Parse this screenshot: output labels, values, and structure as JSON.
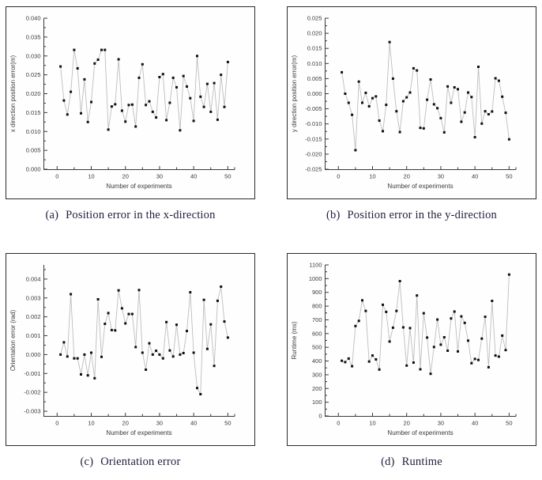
{
  "style": {
    "background": "#ffffff",
    "border_color": "#2b2b2b",
    "axis_color": "#3a3a3a",
    "tick_label_color": "#3a3a3a",
    "marker_color": "#101010",
    "line_color": "#bdbdbd",
    "caption_color": "#1e1e3e"
  },
  "chart_data": [
    {
      "id": "a",
      "type": "line",
      "caption_label": "(a)",
      "caption_text": "Position error in the x-direction",
      "xlabel": "Number of experiments",
      "ylabel": "x direction position error(m)",
      "xlim": [
        -4,
        52
      ],
      "ylim": [
        0,
        0.04
      ],
      "xticks": [
        0,
        10,
        20,
        30,
        40,
        50
      ],
      "xminorticks": [
        5,
        15,
        25,
        35,
        45,
        52
      ],
      "yticks": [
        0.0,
        0.005,
        0.01,
        0.015,
        0.02,
        0.025,
        0.03,
        0.035,
        0.04
      ],
      "ytick_decimals": 3,
      "legend": null,
      "grid": false,
      "x": [
        1,
        2,
        3,
        4,
        5,
        6,
        7,
        8,
        9,
        10,
        11,
        12,
        13,
        14,
        15,
        16,
        17,
        18,
        19,
        20,
        21,
        22,
        23,
        24,
        25,
        26,
        27,
        28,
        29,
        30,
        31,
        32,
        33,
        34,
        35,
        36,
        37,
        38,
        39,
        40,
        41,
        42,
        43,
        44,
        45,
        46,
        47,
        48,
        49,
        50
      ],
      "y": [
        0.0272,
        0.0182,
        0.0145,
        0.0205,
        0.0316,
        0.0267,
        0.0148,
        0.0238,
        0.0125,
        0.0178,
        0.028,
        0.029,
        0.0316,
        0.0316,
        0.0105,
        0.0166,
        0.0172,
        0.0291,
        0.0155,
        0.0126,
        0.017,
        0.0171,
        0.0113,
        0.0242,
        0.0278,
        0.017,
        0.018,
        0.0152,
        0.0137,
        0.0244,
        0.0252,
        0.013,
        0.0176,
        0.0242,
        0.0217,
        0.0103,
        0.0247,
        0.0219,
        0.0188,
        0.0128,
        0.03,
        0.0192,
        0.0165,
        0.0226,
        0.0152,
        0.0228,
        0.0131,
        0.025,
        0.0165,
        0.0284
      ]
    },
    {
      "id": "b",
      "type": "line",
      "caption_label": "(b)",
      "caption_text": "Position error in the y-direction",
      "xlabel": "Number of experiments",
      "ylabel": "y direction position error(m)",
      "xlim": [
        -4,
        52
      ],
      "ylim": [
        -0.025,
        0.025
      ],
      "xticks": [
        0,
        10,
        20,
        30,
        40,
        50
      ],
      "xminorticks": [
        5,
        15,
        25,
        35,
        45,
        52
      ],
      "yticks": [
        -0.025,
        -0.02,
        -0.015,
        -0.01,
        -0.005,
        0.0,
        0.005,
        0.01,
        0.015,
        0.02,
        0.025
      ],
      "ytick_decimals": 3,
      "legend": null,
      "grid": false,
      "x": [
        1,
        2,
        3,
        4,
        5,
        6,
        7,
        8,
        9,
        10,
        11,
        12,
        13,
        14,
        15,
        16,
        17,
        18,
        19,
        20,
        21,
        22,
        23,
        24,
        25,
        26,
        27,
        28,
        29,
        30,
        31,
        32,
        33,
        34,
        35,
        36,
        37,
        38,
        39,
        40,
        41,
        42,
        43,
        44,
        45,
        46,
        47,
        48,
        49,
        50
      ],
      "y": [
        0.0071,
        0.0,
        -0.003,
        -0.007,
        -0.0187,
        0.004,
        -0.003,
        0.0003,
        -0.0042,
        -0.0015,
        -0.0009,
        -0.0089,
        -0.0124,
        -0.0037,
        0.0171,
        0.005,
        -0.0058,
        -0.0127,
        -0.0025,
        -0.0012,
        0.0004,
        0.0084,
        0.0077,
        -0.0113,
        -0.0115,
        -0.002,
        0.0047,
        -0.0035,
        -0.0048,
        -0.0081,
        -0.0128,
        0.0024,
        -0.003,
        0.0021,
        0.0015,
        -0.0093,
        -0.0062,
        0.0004,
        -0.0011,
        -0.0144,
        0.0089,
        -0.0099,
        -0.0058,
        -0.0068,
        -0.0059,
        0.0051,
        0.0043,
        -0.001,
        -0.0063,
        -0.0151
      ]
    },
    {
      "id": "c",
      "type": "line",
      "caption_label": "(c)",
      "caption_text": "Orientation error",
      "xlabel": "Number of experiments",
      "ylabel": "Orientation error (rad)",
      "xlim": [
        -4,
        52
      ],
      "ylim": [
        -0.00325,
        0.00475
      ],
      "xticks": [
        0,
        10,
        20,
        30,
        40,
        50
      ],
      "xminorticks": [
        5,
        15,
        25,
        35,
        45,
        52
      ],
      "yticks": [
        -0.003,
        -0.002,
        -0.001,
        0.0,
        0.001,
        0.002,
        0.003,
        0.004
      ],
      "ytick_decimals": 3,
      "legend": null,
      "grid": false,
      "x": [
        1,
        2,
        3,
        4,
        5,
        6,
        7,
        8,
        9,
        10,
        11,
        12,
        13,
        14,
        15,
        16,
        17,
        18,
        19,
        20,
        21,
        22,
        23,
        24,
        25,
        26,
        27,
        28,
        29,
        30,
        31,
        32,
        33,
        34,
        35,
        36,
        37,
        38,
        39,
        40,
        41,
        42,
        43,
        44,
        45,
        46,
        47,
        48,
        49,
        50
      ],
      "y": [
        0.0,
        0.00065,
        -0.0001,
        0.0032,
        -0.0002,
        -0.0002,
        -0.00105,
        0.0,
        -0.0011,
        0.0001,
        -0.00125,
        0.00293,
        -0.00012,
        0.00163,
        0.0022,
        0.0013,
        0.00128,
        0.0034,
        0.00245,
        0.00165,
        0.00215,
        0.00215,
        0.0004,
        0.00342,
        0.0001,
        -0.0008,
        0.0006,
        0.0,
        0.0002,
        0.0,
        -0.0002,
        0.00172,
        0.00022,
        -0.0001,
        0.00158,
        0.0,
        8e-05,
        0.00125,
        0.0033,
        0.0001,
        -0.00177,
        -0.0021,
        0.0029,
        0.0003,
        0.0016,
        -0.0006,
        0.00285,
        0.0036,
        0.00175,
        0.0009
      ]
    },
    {
      "id": "d",
      "type": "line",
      "caption_label": "(d)",
      "caption_text": "Runtime",
      "xlabel": "Number of experiments",
      "ylabel": "Runtime (ms)",
      "xlim": [
        -4,
        52
      ],
      "ylim": [
        0,
        1100
      ],
      "xticks": [
        0,
        10,
        20,
        30,
        40,
        50
      ],
      "xminorticks": [
        5,
        15,
        25,
        35,
        45,
        52
      ],
      "yticks": [
        0,
        100,
        200,
        300,
        400,
        500,
        600,
        700,
        800,
        900,
        1000,
        1100
      ],
      "ytick_decimals": 0,
      "legend": null,
      "grid": false,
      "x": [
        1,
        2,
        3,
        4,
        5,
        6,
        7,
        8,
        9,
        10,
        11,
        12,
        13,
        14,
        15,
        16,
        17,
        18,
        19,
        20,
        21,
        22,
        23,
        24,
        25,
        26,
        27,
        28,
        29,
        30,
        31,
        32,
        33,
        34,
        35,
        36,
        37,
        38,
        39,
        40,
        41,
        42,
        43,
        44,
        45,
        46,
        47,
        48,
        49,
        50
      ],
      "y": [
        402,
        392,
        418,
        362,
        655,
        692,
        842,
        765,
        396,
        440,
        412,
        338,
        810,
        758,
        542,
        643,
        765,
        982,
        645,
        367,
        640,
        389,
        877,
        340,
        748,
        571,
        307,
        502,
        702,
        519,
        573,
        475,
        710,
        760,
        470,
        725,
        678,
        548,
        384,
        415,
        408,
        563,
        722,
        355,
        838,
        440,
        432,
        585,
        480,
        1030
      ]
    }
  ]
}
